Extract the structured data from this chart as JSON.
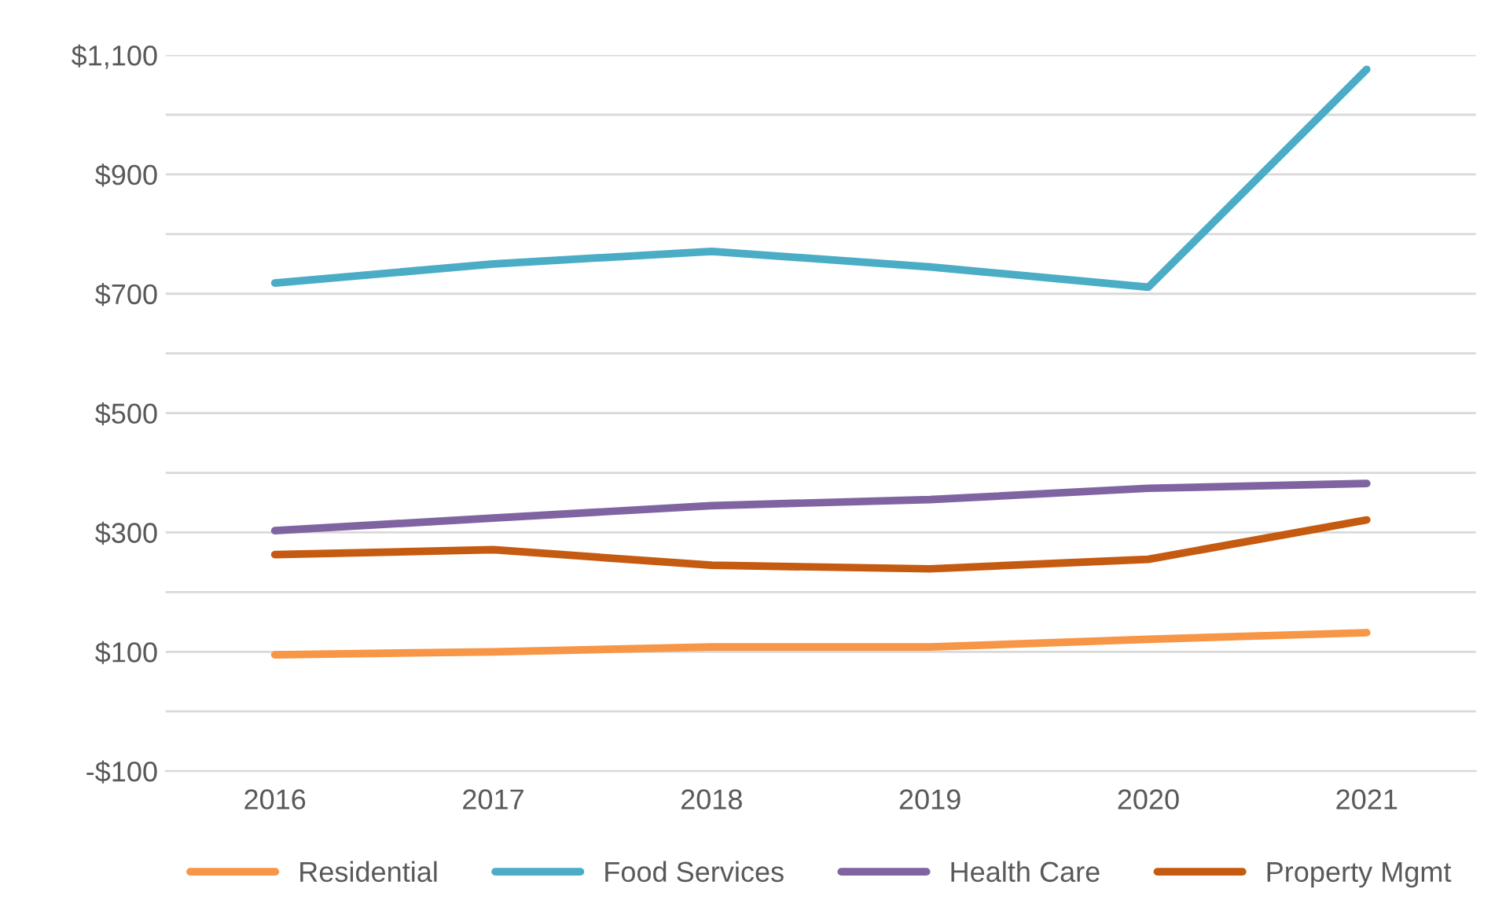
{
  "chart_data": {
    "type": "line",
    "categories": [
      "2016",
      "2017",
      "2018",
      "2019",
      "2020",
      "2021"
    ],
    "series": [
      {
        "name": "Residential",
        "color": "#f79646",
        "values": [
          95,
          100,
          108,
          108,
          121,
          132
        ]
      },
      {
        "name": "Food Services",
        "color": "#4bacc6",
        "values": [
          718,
          750,
          771,
          745,
          711,
          1076
        ]
      },
      {
        "name": "Health Care",
        "color": "#8064a2",
        "values": [
          303,
          324,
          345,
          355,
          374,
          382
        ]
      },
      {
        "name": "Property Mgmt",
        "color": "#c55a11",
        "values": [
          263,
          271,
          245,
          239,
          255,
          321
        ]
      }
    ],
    "ylim": [
      -100,
      1100
    ],
    "yticks": [
      {
        "value": -100,
        "label": "-$100"
      },
      {
        "value": 0,
        "label": null
      },
      {
        "value": 100,
        "label": "$100"
      },
      {
        "value": 200,
        "label": null
      },
      {
        "value": 300,
        "label": "$300"
      },
      {
        "value": 400,
        "label": null
      },
      {
        "value": 500,
        "label": "$500"
      },
      {
        "value": 600,
        "label": null
      },
      {
        "value": 700,
        "label": "$700"
      },
      {
        "value": 800,
        "label": null
      },
      {
        "value": 900,
        "label": "$900"
      },
      {
        "value": 1000,
        "label": null
      },
      {
        "value": 1100,
        "label": "$1,100"
      }
    ],
    "grid": "y",
    "legend": "bottom",
    "marker": "none",
    "line_style": "solid"
  }
}
